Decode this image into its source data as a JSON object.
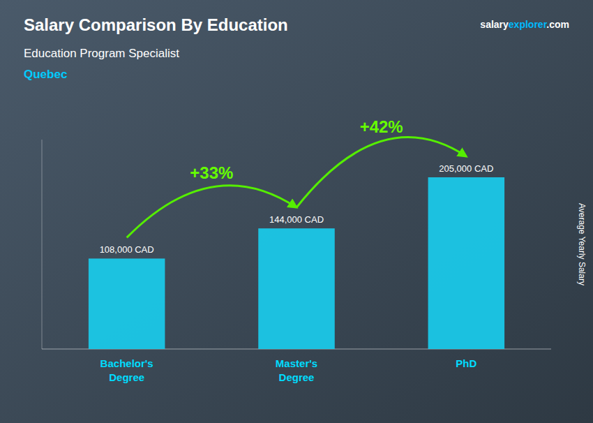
{
  "chart_data": {
    "type": "bar",
    "title": "Salary Comparison By Education",
    "subtitle": [
      "Education Program Specialist",
      "Quebec"
    ],
    "ylabel": "Average Yearly Salary",
    "categories": [
      "Bachelor's\nDegree",
      "Master's\nDegree",
      "PhD"
    ],
    "values": [
      108000,
      144000,
      205000
    ],
    "value_labels": [
      "108,000 CAD",
      "144,000 CAD",
      "205,000 CAD"
    ],
    "color": "#1ac8e8",
    "annotations": [
      "+33%",
      "+42%",
      "salary",
      "explorer",
      ".com"
    ],
    "ylim": [
      0,
      250000
    ],
    "yticks": [],
    "tick_labels": "x",
    "grid": false,
    "data_labels": true
  }
}
